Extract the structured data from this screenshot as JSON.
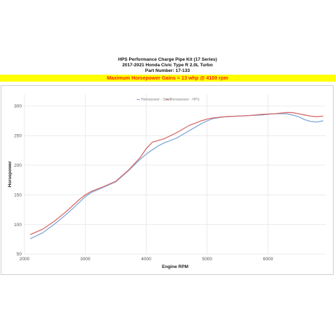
{
  "header": {
    "title": "HPS Performance Charge Pipe Kit (17 Series)",
    "subtitle": "2017-2021 Honda Civic Type R 2.0L Turbo",
    "part_number": "Part Number: 17-133",
    "banner": "Maximum Horsepower Gains = 13 whp @ 4100 rpm",
    "banner_bg": "#ffff00",
    "banner_color": "#ff2200"
  },
  "chart_data": {
    "type": "line",
    "xlabel": "Engine RPM",
    "ylabel": "Horsepower",
    "xlim": [
      2000,
      6950
    ],
    "ylim": [
      50,
      320
    ],
    "x_ticks": [
      2000,
      3000,
      4000,
      5000,
      6000
    ],
    "y_ticks": [
      50,
      100,
      150,
      200,
      250,
      300
    ],
    "grid": true,
    "legend_position": "top-center",
    "series": [
      {
        "name": "Horsepower - Stock",
        "color": "#7fa6d8",
        "x": [
          2100,
          2300,
          2500,
          2700,
          2900,
          3000,
          3100,
          3300,
          3500,
          3700,
          3900,
          4000,
          4100,
          4200,
          4300,
          4500,
          4700,
          4900,
          5000,
          5100,
          5300,
          5500,
          5700,
          5900,
          6100,
          6300,
          6400,
          6500,
          6600,
          6700,
          6800,
          6900
        ],
        "y": [
          76,
          86,
          101,
          118,
          137,
          147,
          154,
          163,
          172,
          190,
          210,
          219,
          226,
          233,
          238,
          246,
          258,
          270,
          275,
          279,
          282,
          283,
          284,
          285,
          287,
          287,
          285,
          282,
          277,
          274,
          273,
          275
        ]
      },
      {
        "name": "Horsepower - HPS",
        "color": "#d76a6a",
        "x": [
          2100,
          2300,
          2500,
          2700,
          2900,
          3000,
          3100,
          3300,
          3500,
          3700,
          3900,
          4000,
          4100,
          4200,
          4300,
          4500,
          4700,
          4900,
          5000,
          5100,
          5300,
          5500,
          5700,
          5900,
          6100,
          6300,
          6400,
          6500,
          6600,
          6700,
          6800,
          6900
        ],
        "y": [
          83,
          92,
          106,
          123,
          142,
          150,
          156,
          164,
          173,
          191,
          213,
          228,
          239,
          242,
          245,
          255,
          267,
          275,
          278,
          280,
          282,
          283,
          284,
          286,
          287,
          289,
          289,
          287,
          285,
          283,
          282,
          283
        ]
      }
    ]
  }
}
